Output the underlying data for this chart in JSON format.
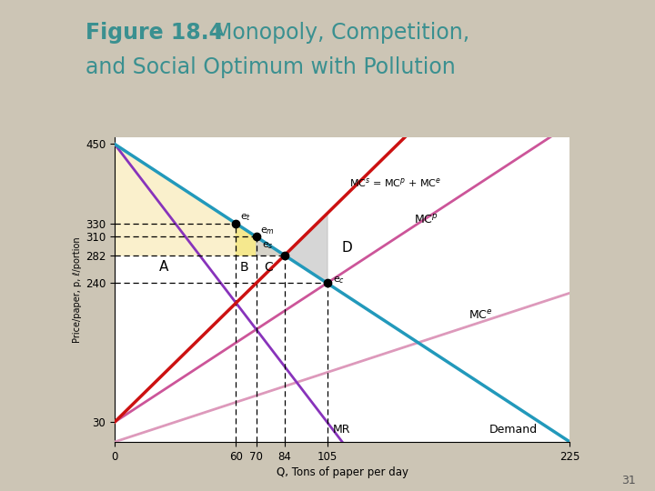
{
  "title_bold": "Figure 18.4",
  "title_rest": "  Monopoly, Competition,\nand Social Optimum with Pollution",
  "title_color": "#3a9090",
  "title_bold_color": "#2a6060",
  "page_bg": "#ccc5b5",
  "plot_bg": "#ffffff",
  "xlabel": "Q, Tons of paper per day",
  "ylabel": "Price/paper, p, ℓ/portion",
  "xmax": 225,
  "ymax": 460,
  "yticks": [
    30,
    240,
    282,
    310,
    330,
    450
  ],
  "xticks": [
    0,
    60,
    70,
    84,
    105,
    225
  ],
  "colors": {
    "demand": "#2299bb",
    "MCS": "#cc1111",
    "MCP": "#cc5599",
    "MCE": "#dd99bb",
    "MR": "#8833bb",
    "yellow_fill": "#faf0cc",
    "yellow_b": "#f5e888",
    "gray_fill": "#c0c0c0",
    "gray_c": "#c8c8c8",
    "page_bg": "#ccc5b5",
    "dashed": "#333333"
  },
  "points": {
    "et": [
      60,
      330
    ],
    "em": [
      70,
      310
    ],
    "es": [
      84,
      282
    ],
    "ec": [
      105,
      240
    ]
  }
}
